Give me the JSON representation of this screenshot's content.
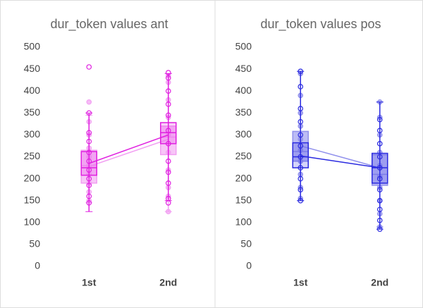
{
  "chart_data": [
    {
      "type": "box",
      "title": "dur_token values ant",
      "categories": [
        "1st",
        "2nd"
      ],
      "ylim": [
        0,
        500
      ],
      "yticks": [
        0,
        50,
        100,
        150,
        200,
        250,
        300,
        350,
        400,
        450,
        500
      ],
      "series": [
        {
          "color": "#f2a0f2",
          "min": [
            145,
            125
          ],
          "q1": [
            190,
            255
          ],
          "median": [
            230,
            295
          ],
          "q3": [
            265,
            320
          ],
          "max": [
            345,
            440
          ],
          "mean": [
            228,
            290
          ],
          "points": [
            [
              150,
              170,
              190,
              210,
              230,
              250,
              270,
              300,
              330,
              375
            ],
            [
              125,
              160,
              180,
              220,
              260,
              300,
              340,
              380,
              420,
              435
            ]
          ]
        },
        {
          "color": "#e020e0",
          "min": [
            125,
            150
          ],
          "q1": [
            208,
            280
          ],
          "median": [
            225,
            305
          ],
          "q3": [
            262,
            328
          ],
          "max": [
            350,
            440
          ],
          "mean": [
            235,
            300
          ],
          "points": [
            [
              145,
              160,
              185,
              200,
              220,
              240,
              260,
              285,
              305,
              350,
              455
            ],
            [
              145,
              155,
              190,
              215,
              240,
              280,
              310,
              345,
              370,
              400,
              430,
              442
            ]
          ]
        }
      ]
    },
    {
      "type": "box",
      "title": "dur_token values pos",
      "categories": [
        "1st",
        "2nd"
      ],
      "ylim": [
        0,
        500
      ],
      "yticks": [
        0,
        50,
        100,
        150,
        200,
        250,
        300,
        350,
        400,
        450,
        500
      ],
      "series": [
        {
          "color": "#9090ec",
          "min": [
            150,
            90
          ],
          "q1": [
            240,
            185
          ],
          "median": [
            262,
            210
          ],
          "q3": [
            308,
            255
          ],
          "max": [
            445,
            375
          ],
          "mean": [
            275,
            225
          ],
          "points": [
            [
              155,
              180,
              210,
              240,
              265,
              290,
              320,
              350,
              390,
              440
            ],
            [
              90,
              120,
              150,
              180,
              205,
              230,
              260,
              300,
              340,
              375
            ]
          ]
        },
        {
          "color": "#2a2ae0",
          "min": [
            150,
            85
          ],
          "q1": [
            225,
            190
          ],
          "median": [
            250,
            225
          ],
          "q3": [
            282,
            258
          ],
          "max": [
            445,
            375
          ],
          "mean": [
            252,
            225
          ],
          "points": [
            [
              150,
              175,
              200,
              225,
              250,
              275,
              300,
              330,
              360,
              410,
              445
            ],
            [
              85,
              105,
              130,
              150,
              175,
              200,
              225,
              250,
              280,
              310,
              335
            ]
          ]
        }
      ]
    }
  ]
}
